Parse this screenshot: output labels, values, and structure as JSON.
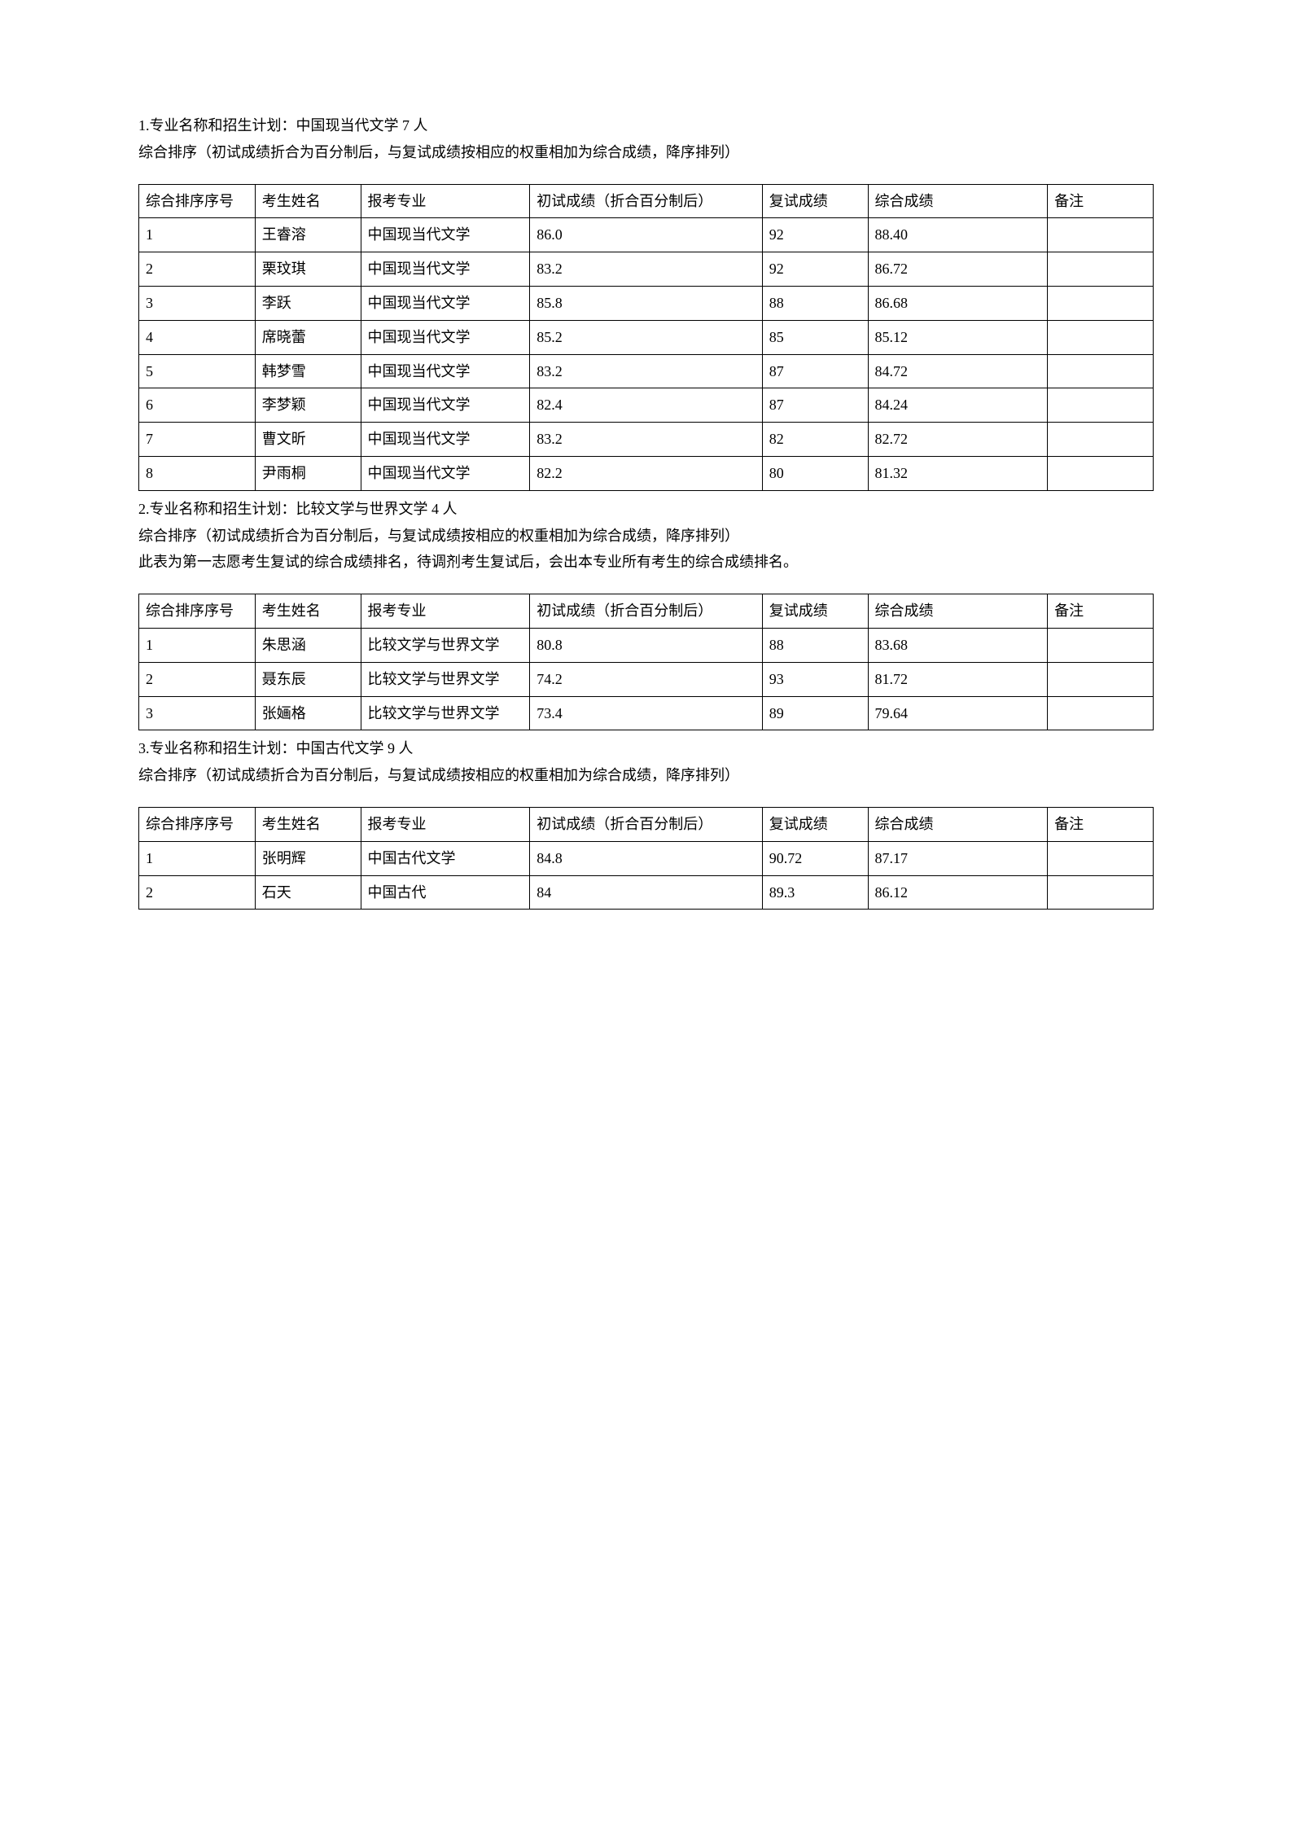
{
  "section1": {
    "title": "1.专业名称和招生计划：中国现当代文学 7 人",
    "desc": "综合排序（初试成绩折合为百分制后，与复试成绩按相应的权重相加为综合成绩，降序排列）",
    "headers": {
      "rank": "综合排序序号",
      "name": "考生姓名",
      "major": "报考专业",
      "prelim": "初试成绩（折合百分制后）",
      "retest": "复试成绩",
      "total": "综合成绩",
      "remark": "备注"
    },
    "rows": [
      {
        "rank": "1",
        "name": "王睿溶",
        "major": "中国现当代文学",
        "prelim": "86.0",
        "retest": "92",
        "total": "88.40",
        "remark": ""
      },
      {
        "rank": "2",
        "name": "栗玟琪",
        "major": "中国现当代文学",
        "prelim": "83.2",
        "retest": "92",
        "total": "86.72",
        "remark": ""
      },
      {
        "rank": "3",
        "name": "李跃",
        "major": "中国现当代文学",
        "prelim": "85.8",
        "retest": "88",
        "total": "86.68",
        "remark": ""
      },
      {
        "rank": "4",
        "name": "席晓蕾",
        "major": "中国现当代文学",
        "prelim": "85.2",
        "retest": "85",
        "total": "85.12",
        "remark": ""
      },
      {
        "rank": "5",
        "name": "韩梦雪",
        "major": "中国现当代文学",
        "prelim": "83.2",
        "retest": "87",
        "total": "84.72",
        "remark": ""
      },
      {
        "rank": "6",
        "name": "李梦颖",
        "major": "中国现当代文学",
        "prelim": "82.4",
        "retest": "87",
        "total": "84.24",
        "remark": ""
      },
      {
        "rank": "7",
        "name": "曹文昕",
        "major": "中国现当代文学",
        "prelim": "83.2",
        "retest": "82",
        "total": "82.72",
        "remark": ""
      },
      {
        "rank": "8",
        "name": "尹雨桐",
        "major": "中国现当代文学",
        "prelim": "82.2",
        "retest": "80",
        "total": "81.32",
        "remark": ""
      }
    ]
  },
  "section2": {
    "title": "2.专业名称和招生计划：比较文学与世界文学 4 人",
    "desc": "综合排序（初试成绩折合为百分制后，与复试成绩按相应的权重相加为综合成绩，降序排列）",
    "note": "此表为第一志愿考生复试的综合成绩排名，待调剂考生复试后，会出本专业所有考生的综合成绩排名。",
    "headers": {
      "rank": "综合排序序号",
      "name": "考生姓名",
      "major": "报考专业",
      "prelim": "初试成绩（折合百分制后）",
      "retest": "复试成绩",
      "total": "综合成绩",
      "remark": "备注"
    },
    "rows": [
      {
        "rank": "1",
        "name": "朱思涵",
        "major": "比较文学与世界文学",
        "prelim": "80.8",
        "retest": "88",
        "total": "83.68",
        "remark": ""
      },
      {
        "rank": "2",
        "name": "聂东辰",
        "major": "比较文学与世界文学",
        "prelim": "74.2",
        "retest": "93",
        "total": "81.72",
        "remark": ""
      },
      {
        "rank": "3",
        "name": "张婳格",
        "major": "比较文学与世界文学",
        "prelim": "73.4",
        "retest": "89",
        "total": "79.64",
        "remark": ""
      }
    ]
  },
  "section3": {
    "title": "3.专业名称和招生计划：中国古代文学 9 人",
    "desc": "综合排序（初试成绩折合为百分制后，与复试成绩按相应的权重相加为综合成绩，降序排列）",
    "headers": {
      "rank": "综合排序序号",
      "name": "考生姓名",
      "major": "报考专业",
      "prelim": "初试成绩（折合百分制后）",
      "retest": "复试成绩",
      "total": "综合成绩",
      "remark": "备注"
    },
    "rows": [
      {
        "rank": "1",
        "name": "张明辉",
        "major": "中国古代文学",
        "prelim": "84.8",
        "retest": "90.72",
        "total": "87.17",
        "remark": ""
      },
      {
        "rank": "2",
        "name": "石天",
        "major": "中国古代",
        "prelim": "84",
        "retest": "89.3",
        "total": "86.12",
        "remark": ""
      }
    ]
  }
}
